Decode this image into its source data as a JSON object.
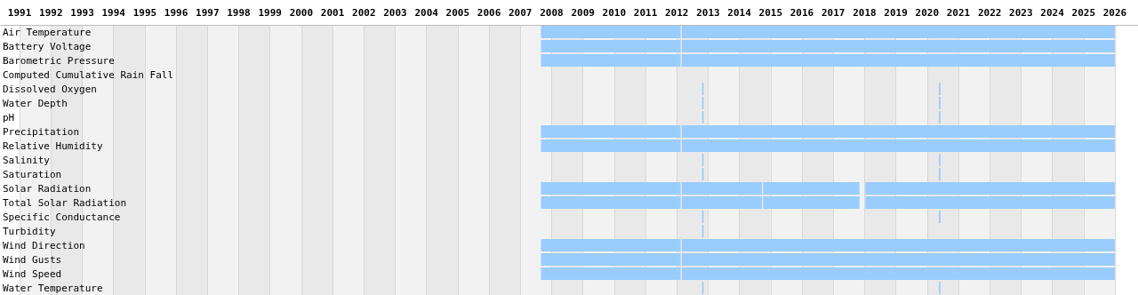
{
  "chart_data": {
    "type": "bar",
    "orientation": "horizontal",
    "categories": [
      "Air Temperature",
      "Battery Voltage",
      "Barometric Pressure",
      "Computed Cumulative Rain Fall",
      "Dissolved Oxygen",
      "Water Depth",
      "pH",
      "Precipitation",
      "Relative Humidity",
      "Salinity",
      "Saturation",
      "Solar Radiation",
      "Total Solar Radiation",
      "Specific Conductance",
      "Turbidity",
      "Wind Direction",
      "Wind Gusts",
      "Wind Speed",
      "Water Temperature"
    ],
    "series": [
      {
        "color": "#99ccff",
        "base": [
          2007.66,
          2007.66,
          2007.66,
          null,
          null,
          null,
          null,
          2007.66,
          2007.66,
          null,
          null,
          2007.66,
          2007.66,
          null,
          null,
          2007.66,
          2007.66,
          2007.66,
          null
        ],
        "values": [
          4.46,
          4.46,
          4.46,
          null,
          null,
          null,
          null,
          4.46,
          4.46,
          null,
          null,
          4.46,
          4.46,
          null,
          null,
          4.46,
          4.46,
          4.46,
          null
        ]
      },
      {
        "color": "#99ccff",
        "base": [
          2012.16,
          2012.16,
          2012.16,
          null,
          null,
          null,
          null,
          2012.16,
          2012.16,
          null,
          null,
          2012.16,
          2012.16,
          null,
          null,
          2012.16,
          2012.16,
          2012.16,
          null
        ],
        "values": [
          13.84,
          13.84,
          13.84,
          null,
          null,
          null,
          null,
          13.84,
          13.84,
          null,
          null,
          2.56,
          2.56,
          null,
          null,
          13.84,
          13.84,
          13.84,
          null
        ]
      },
      {
        "color": "#99ccff",
        "base": [
          null,
          null,
          null,
          null,
          null,
          null,
          null,
          null,
          null,
          null,
          null,
          2014.76,
          2014.76,
          null,
          null,
          null,
          null,
          null,
          null
        ],
        "values": [
          null,
          null,
          null,
          null,
          null,
          null,
          null,
          null,
          null,
          null,
          null,
          3.08,
          3.08,
          null,
          null,
          null,
          null,
          null,
          null
        ]
      },
      {
        "color": "#99ccff",
        "base": [
          null,
          null,
          null,
          null,
          null,
          null,
          null,
          null,
          null,
          null,
          null,
          2018.03,
          2018.03,
          null,
          null,
          null,
          null,
          null,
          null
        ],
        "values": [
          null,
          null,
          null,
          null,
          null,
          null,
          null,
          null,
          null,
          null,
          null,
          7.97,
          7.97,
          null,
          null,
          null,
          null,
          null,
          null
        ]
      },
      {
        "color": "#99ccff",
        "base": [
          null,
          null,
          null,
          null,
          2012.81,
          2012.81,
          2012.81,
          null,
          null,
          2012.81,
          2012.81,
          null,
          null,
          2012.81,
          2012.81,
          null,
          null,
          null,
          2012.81
        ],
        "values": [
          null,
          null,
          null,
          null,
          0.05,
          0.05,
          0.05,
          null,
          null,
          0.05,
          0.05,
          null,
          null,
          0.05,
          0.05,
          null,
          null,
          null,
          0.05
        ]
      },
      {
        "color": "#99ccff",
        "base": [
          null,
          null,
          null,
          null,
          2020.38,
          2020.38,
          2020.38,
          null,
          null,
          2020.38,
          2020.38,
          null,
          null,
          2020.38,
          null,
          null,
          null,
          null,
          2020.38
        ],
        "values": [
          null,
          null,
          null,
          null,
          0.05,
          0.05,
          0.05,
          null,
          null,
          0.05,
          0.05,
          null,
          null,
          0.05,
          null,
          null,
          null,
          null,
          0.05
        ]
      }
    ],
    "xlim": [
      1990.4,
      2026.74
    ],
    "xticks": [
      1991,
      1992,
      1993,
      1994,
      1995,
      1996,
      1997,
      1998,
      1999,
      2000,
      2001,
      2002,
      2003,
      2004,
      2005,
      2006,
      2007,
      2008,
      2009,
      2010,
      2011,
      2012,
      2013,
      2014,
      2015,
      2016,
      2017,
      2018,
      2019,
      2020,
      2021,
      2022,
      2023,
      2024,
      2025,
      2026
    ],
    "grid": "x"
  }
}
